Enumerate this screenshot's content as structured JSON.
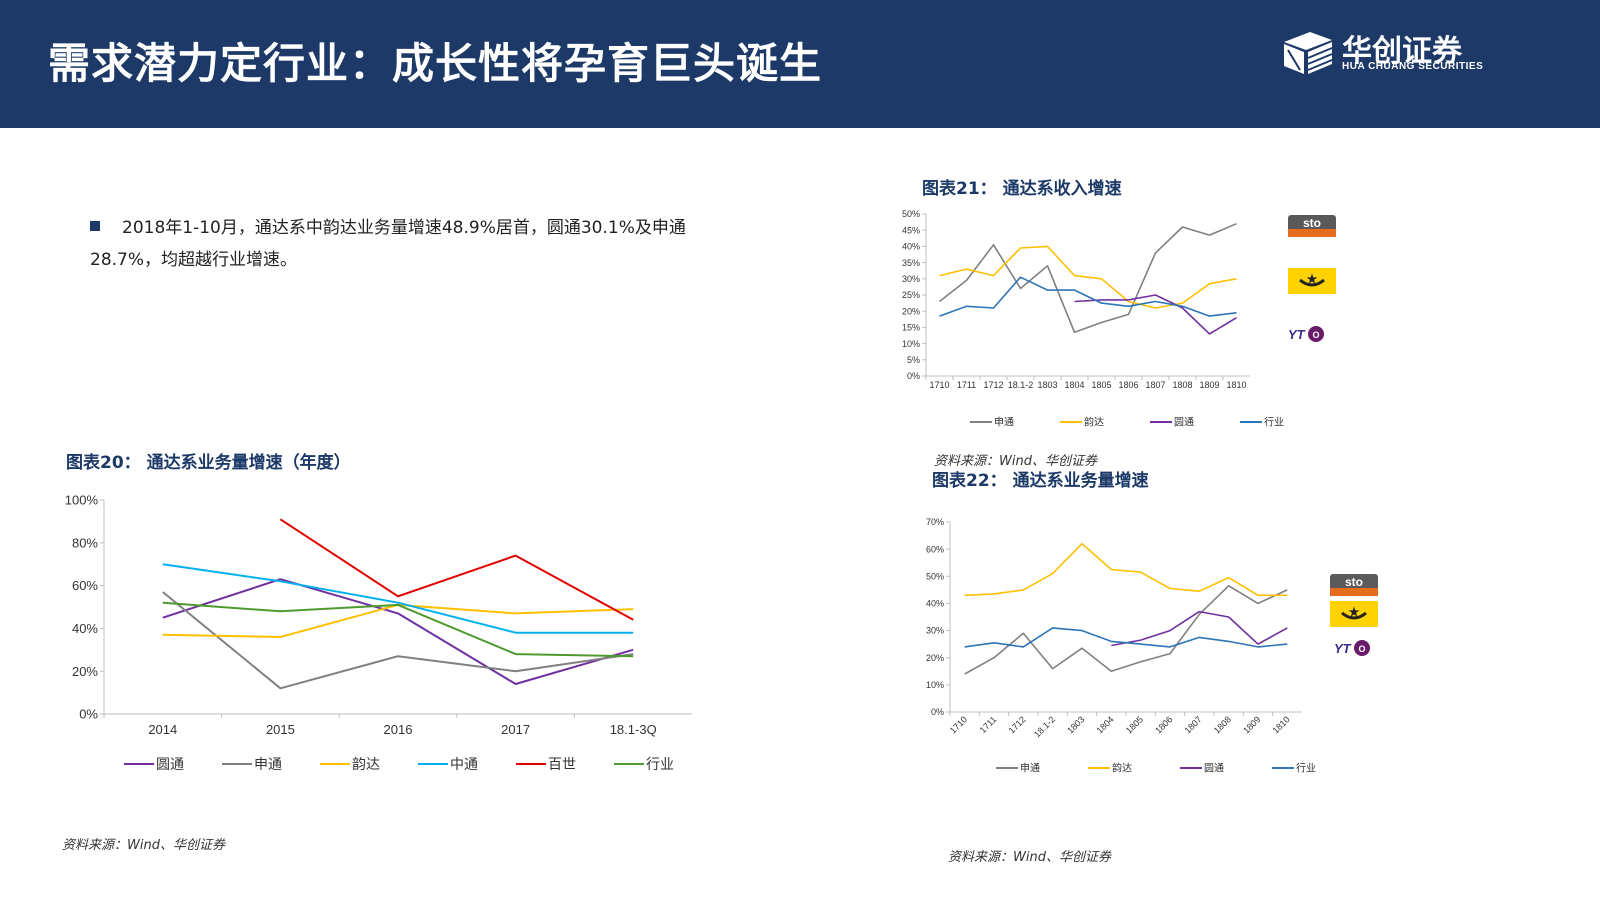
{
  "header": {
    "title": "需求潜力定行业：成长性将孕育巨头诞生"
  },
  "logo": {
    "cn": "华创证券",
    "en": "HUA CHUANG SECURITIES"
  },
  "bullet": {
    "line1": "2018年1-10月，通达系中韵达业务量增速48.9%居首，圆通30.1%及申通",
    "line2": "28.7%，均超越行业增速。"
  },
  "colors": {
    "header": "#1c3967",
    "yuantong": "#7030a0",
    "shentong": "#808080",
    "yunda": "#ffc000",
    "zhongtong": "#00b0f0",
    "baishi": "#e00000",
    "industry": "#4f9a2f",
    "industry_monthly": "#2e75b6"
  },
  "source": "资料来源：Wind、华创证券",
  "chart_data": [
    {
      "id": "fig20",
      "type": "line",
      "title": "图表20： 通达系业务量增速（年度）",
      "categories": [
        "2014",
        "2015",
        "2016",
        "2017",
        "18.1-3Q"
      ],
      "ylim": [
        0,
        100
      ],
      "yticks": [
        0,
        20,
        40,
        60,
        80,
        100
      ],
      "ytick_labels": [
        "0%",
        "20%",
        "40%",
        "60%",
        "80%",
        "100%"
      ],
      "legend": "bottom",
      "series": [
        {
          "name": "圆通",
          "color": "#7030a0",
          "values": [
            45,
            63,
            47,
            14,
            30
          ]
        },
        {
          "name": "申通",
          "color": "#808080",
          "values": [
            57,
            12,
            27,
            20,
            28
          ]
        },
        {
          "name": "韵达",
          "color": "#ffc000",
          "values": [
            37,
            36,
            51,
            47,
            49
          ]
        },
        {
          "name": "中通",
          "color": "#00b0f0",
          "values": [
            70,
            62,
            52,
            38,
            38
          ]
        },
        {
          "name": "百世",
          "color": "#e00000",
          "values": [
            null,
            91,
            55,
            74,
            44
          ]
        },
        {
          "name": "行业",
          "color": "#4f9a2f",
          "values": [
            52,
            48,
            51,
            28,
            27
          ]
        }
      ]
    },
    {
      "id": "fig21",
      "type": "line",
      "title": "图表21： 通达系收入增速",
      "categories": [
        "1710",
        "1711",
        "1712",
        "18.1-2",
        "1803",
        "1804",
        "1805",
        "1806",
        "1807",
        "1808",
        "1809",
        "1810"
      ],
      "ylim": [
        0,
        50
      ],
      "yticks": [
        0,
        5,
        10,
        15,
        20,
        25,
        30,
        35,
        40,
        45,
        50
      ],
      "ytick_labels": [
        "0%",
        "5%",
        "10%",
        "15%",
        "20%",
        "25%",
        "30%",
        "35%",
        "40%",
        "45%",
        "50%"
      ],
      "legend": "bottom",
      "series": [
        {
          "name": "申通",
          "color": "#808080",
          "values": [
            23,
            29.5,
            40.5,
            27,
            34,
            13.5,
            16.5,
            19,
            38,
            46,
            43.5,
            47
          ]
        },
        {
          "name": "韵达",
          "color": "#ffc000",
          "values": [
            31,
            33,
            31,
            39.5,
            40,
            31,
            30,
            23,
            21,
            22.5,
            28.5,
            30
          ]
        },
        {
          "name": "圆通",
          "color": "#7030a0",
          "values": [
            null,
            null,
            null,
            null,
            null,
            23,
            23.5,
            23.5,
            25,
            21,
            13,
            18
          ]
        },
        {
          "name": "行业",
          "color": "#2e75b6",
          "values": [
            18.5,
            21.5,
            21,
            30.5,
            26.5,
            26.5,
            22.5,
            21.5,
            23,
            21.5,
            18.5,
            19.5
          ]
        }
      ]
    },
    {
      "id": "fig22",
      "type": "line",
      "title": "图表22： 通达系业务量增速",
      "categories": [
        "1710",
        "1711",
        "1712",
        "18.1-2",
        "1803",
        "1804",
        "1805",
        "1806",
        "1807",
        "1808",
        "1809",
        "1810"
      ],
      "ylim": [
        0,
        70
      ],
      "yticks": [
        0,
        10,
        20,
        30,
        40,
        50,
        60,
        70
      ],
      "ytick_labels": [
        "0%",
        "10%",
        "20%",
        "30%",
        "40%",
        "50%",
        "60%",
        "70%"
      ],
      "legend": "bottom",
      "series": [
        {
          "name": "申通",
          "color": "#808080",
          "values": [
            14,
            20,
            29,
            16,
            23.5,
            15,
            18.5,
            21.5,
            36,
            46.5,
            40,
            45
          ]
        },
        {
          "name": "韵达",
          "color": "#ffc000",
          "values": [
            43,
            43.5,
            45,
            51,
            62,
            52.5,
            51.5,
            45.5,
            44.5,
            49.5,
            43,
            43
          ]
        },
        {
          "name": "圆通",
          "color": "#7030a0",
          "values": [
            null,
            null,
            null,
            null,
            null,
            24.5,
            26.5,
            30,
            37,
            35,
            25,
            31
          ]
        },
        {
          "name": "行业",
          "color": "#2e75b6",
          "values": [
            24,
            25.5,
            24,
            31,
            30,
            26,
            25,
            24,
            27.5,
            26,
            24,
            25
          ]
        }
      ]
    }
  ]
}
